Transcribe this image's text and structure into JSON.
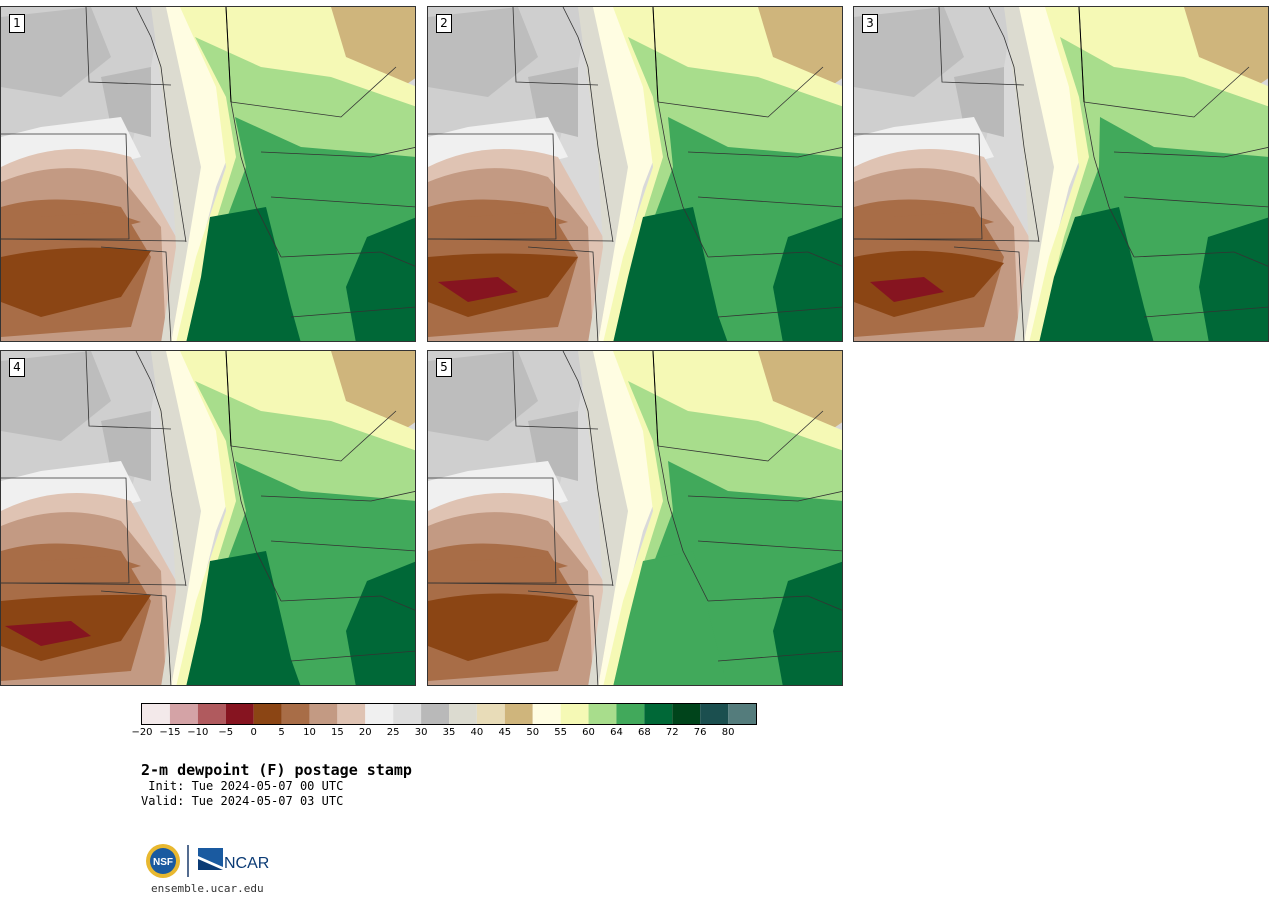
{
  "panels": [
    {
      "label": "1",
      "variant": 0
    },
    {
      "label": "2",
      "variant": 1
    },
    {
      "label": "3",
      "variant": 2
    },
    {
      "label": "4",
      "variant": 3
    },
    {
      "label": "5",
      "variant": 4
    }
  ],
  "colorbar": {
    "colors": [
      "#f3e9ea",
      "#d4a3a6",
      "#b05a5e",
      "#861420",
      "#8b4514",
      "#a86d47",
      "#c39a83",
      "#dfc3b3",
      "#f0f0f0",
      "#dedede",
      "#b9b9b9",
      "#dcdbd0",
      "#e8dcb8",
      "#cfb57c",
      "#fffde2",
      "#f5f9b5",
      "#a8dd8c",
      "#41a95b",
      "#006837",
      "#00441b",
      "#1b4f4f",
      "#547c7c"
    ],
    "tick_labels": [
      "−20",
      "−15",
      "−10",
      "−5",
      "0",
      "5",
      "10",
      "15",
      "20",
      "25",
      "30",
      "35",
      "40",
      "45",
      "50",
      "55",
      "60",
      "64",
      "68",
      "72",
      "76",
      "80"
    ]
  },
  "title": "2-m dewpoint (F) postage stamp",
  "init_line": " Init: Tue 2024-05-07 00 UTC",
  "valid_line": "Valid: Tue 2024-05-07 03 UTC",
  "logos": {
    "left": "NSF",
    "right": "NCAR"
  },
  "url": "ensemble.ucar.edu"
}
